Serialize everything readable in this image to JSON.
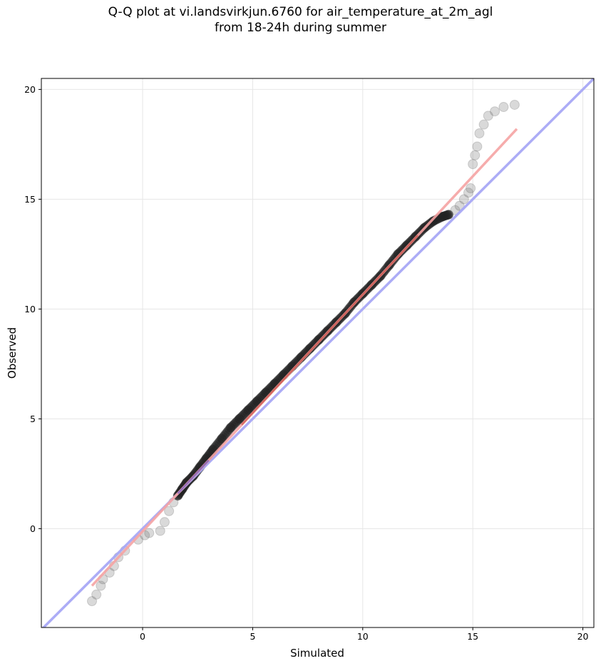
{
  "chart_data": {
    "type": "scatter",
    "title_lines": [
      "Q-Q plot at vi.landsvirkjun.6760 for air_temperature_at_2m_agl",
      "from 18-24h during summer"
    ],
    "xlabel": "Simulated",
    "ylabel": "Observed",
    "xlim": [
      -4.6,
      20.5
    ],
    "ylim": [
      -4.5,
      20.5
    ],
    "xticks": [
      0,
      5,
      10,
      15,
      20
    ],
    "yticks": [
      0,
      5,
      10,
      15,
      20
    ],
    "grid": true,
    "colors": {
      "points": "#333333",
      "identity_line": "#a8a8f5",
      "fit_line": "#f5a3a3",
      "core_red": "#c0392b",
      "core_blue": "#3b3bd0"
    },
    "quantiles": {
      "x": [
        -2.3,
        -2.1,
        -1.9,
        -1.8,
        -1.5,
        -1.3,
        -1.1,
        -0.8,
        -0.2,
        0.1,
        0.3,
        0.8,
        1.0,
        1.2,
        1.4,
        1.6,
        1.8,
        2.0,
        2.3,
        2.6,
        2.9,
        3.2,
        3.6,
        4.0,
        4.4,
        4.8,
        5.2,
        5.6,
        6.0,
        6.4,
        6.8,
        7.2,
        7.6,
        8.0,
        8.4,
        8.8,
        9.2,
        9.6,
        10.0,
        10.4,
        10.8,
        11.2,
        11.6,
        12.0,
        12.4,
        12.8,
        13.2,
        13.6,
        13.9,
        14.2,
        14.4,
        14.6,
        14.8,
        14.9,
        15.0,
        15.1,
        15.2,
        15.3,
        15.5,
        15.7,
        16.0,
        16.4,
        16.9
      ],
      "y": [
        -3.3,
        -3.0,
        -2.6,
        -2.3,
        -2.0,
        -1.7,
        -1.3,
        -1.0,
        -0.5,
        -0.3,
        -0.2,
        -0.1,
        0.3,
        0.8,
        1.2,
        1.5,
        1.8,
        2.1,
        2.4,
        2.8,
        3.2,
        3.6,
        4.1,
        4.6,
        5.0,
        5.4,
        5.8,
        6.2,
        6.6,
        7.0,
        7.4,
        7.8,
        8.2,
        8.6,
        9.0,
        9.4,
        9.8,
        10.3,
        10.7,
        11.1,
        11.5,
        12.0,
        12.5,
        12.9,
        13.3,
        13.7,
        14.0,
        14.2,
        14.3,
        14.5,
        14.7,
        15.0,
        15.3,
        15.5,
        16.6,
        17.0,
        17.4,
        18.0,
        18.4,
        18.8,
        19.0,
        19.2,
        19.3
      ]
    },
    "fit_line": {
      "x": [
        -2.3,
        17.0
      ],
      "y": [
        -2.6,
        18.2
      ]
    },
    "identity_line": {
      "x": [
        -4.6,
        20.5
      ],
      "y": [
        -4.6,
        20.5
      ]
    }
  }
}
